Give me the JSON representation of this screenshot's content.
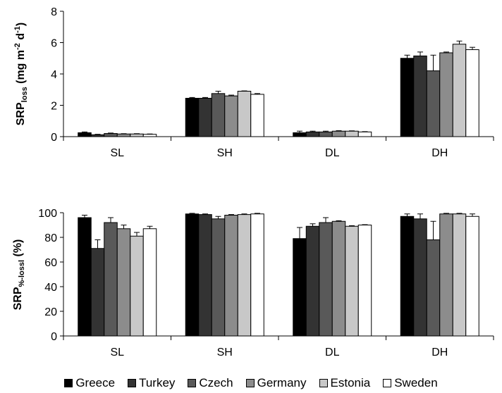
{
  "chart_data": [
    {
      "type": "bar",
      "categories": [
        "SL",
        "SH",
        "DL",
        "DH"
      ],
      "ylabel_main": "SRP",
      "ylabel_sub": "loss",
      "ylabel_rest": " (mg m",
      "ylabel_sup1": "-2",
      "ylabel_mid": " d",
      "ylabel_sup2": "-1",
      "ylabel_end": ")",
      "ylim": [
        0,
        8
      ],
      "yticks": [
        "0",
        "2",
        "4",
        "6",
        "8"
      ],
      "series": [
        {
          "name": "Greece",
          "values": [
            0.25,
            2.45,
            0.25,
            5.0
          ],
          "errors": [
            0.05,
            0.05,
            0.1,
            0.2
          ]
        },
        {
          "name": "Turkey",
          "values": [
            0.12,
            2.45,
            0.3,
            5.15
          ],
          "errors": [
            0.03,
            0.05,
            0.05,
            0.25
          ]
        },
        {
          "name": "Czech",
          "values": [
            0.2,
            2.75,
            0.3,
            4.2
          ],
          "errors": [
            0.03,
            0.15,
            0.05,
            1.0
          ]
        },
        {
          "name": "Germany",
          "values": [
            0.17,
            2.6,
            0.35,
            5.35
          ],
          "errors": [
            0.02,
            0.05,
            0.03,
            0.05
          ]
        },
        {
          "name": "Estonia",
          "values": [
            0.17,
            2.9,
            0.35,
            5.9
          ],
          "errors": [
            0.02,
            0.02,
            0.02,
            0.2
          ]
        },
        {
          "name": "Sweden",
          "values": [
            0.15,
            2.7,
            0.3,
            5.55
          ],
          "errors": [
            0.02,
            0.05,
            0.02,
            0.15
          ]
        }
      ],
      "grid": false
    },
    {
      "type": "bar",
      "categories": [
        "SL",
        "SH",
        "DL",
        "DH"
      ],
      "ylabel_main": "SRP",
      "ylabel_sub": "%-lossl",
      "ylabel_rest": " (%)",
      "ylim": [
        0,
        100
      ],
      "yticks": [
        "0",
        "20",
        "40",
        "60",
        "80",
        "100"
      ],
      "series": [
        {
          "name": "Greece",
          "values": [
            96,
            99,
            79,
            97
          ],
          "errors": [
            2,
            0.5,
            9,
            2
          ]
        },
        {
          "name": "Turkey",
          "values": [
            71,
            98.5,
            89,
            95
          ],
          "errors": [
            7,
            0.5,
            2,
            4
          ]
        },
        {
          "name": "Czech",
          "values": [
            92,
            95,
            92,
            78
          ],
          "errors": [
            4,
            2,
            4,
            15
          ]
        },
        {
          "name": "Germany",
          "values": [
            87,
            98,
            93,
            99
          ],
          "errors": [
            3,
            0.5,
            0.5,
            0.5
          ]
        },
        {
          "name": "Estonia",
          "values": [
            81,
            98.5,
            89,
            99
          ],
          "errors": [
            3,
            0.5,
            0.5,
            0.5
          ]
        },
        {
          "name": "Sweden",
          "values": [
            87,
            99,
            90,
            97
          ],
          "errors": [
            2,
            0.5,
            0.3,
            2
          ]
        }
      ],
      "grid": false
    }
  ],
  "legend": {
    "placement": "bottom",
    "items": [
      {
        "label": "Greece",
        "color": "#000000"
      },
      {
        "label": "Turkey",
        "color": "#333333"
      },
      {
        "label": "Czech",
        "color": "#595959"
      },
      {
        "label": "Germany",
        "color": "#8c8c8c"
      },
      {
        "label": "Estonia",
        "color": "#c8c8c8"
      },
      {
        "label": "Sweden",
        "color": "#ffffff"
      }
    ]
  }
}
